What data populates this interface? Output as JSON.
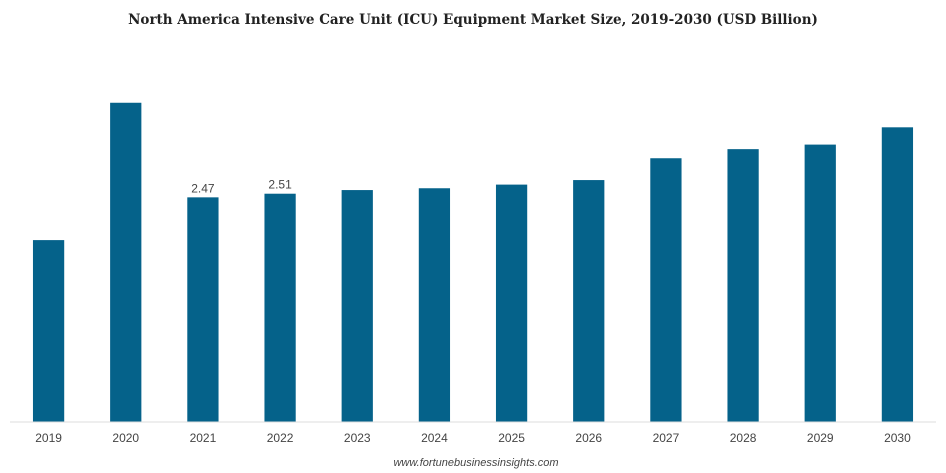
{
  "chart_data": {
    "type": "bar",
    "title": "North America Intensive Care Unit (ICU) Equipment Market Size, 2019-2030 (USD Billion)",
    "xlabel": "",
    "ylabel": "",
    "categories": [
      "2019",
      "2020",
      "2021",
      "2022",
      "2023",
      "2024",
      "2025",
      "2026",
      "2027",
      "2028",
      "2029",
      "2030"
    ],
    "values": [
      2.0,
      3.51,
      2.47,
      2.51,
      2.55,
      2.57,
      2.61,
      2.66,
      2.9,
      3.0,
      3.05,
      3.24
    ],
    "data_labels": [
      {
        "category": "2021",
        "text": "2.47"
      },
      {
        "category": "2022",
        "text": "2.51"
      }
    ],
    "ylim": [
      0,
      4.2
    ],
    "grid": false,
    "legend": "none",
    "colors": {
      "bar": "#05628a",
      "axis": "#dddddd"
    }
  },
  "source": "www.fortunebusinessinsights.com"
}
